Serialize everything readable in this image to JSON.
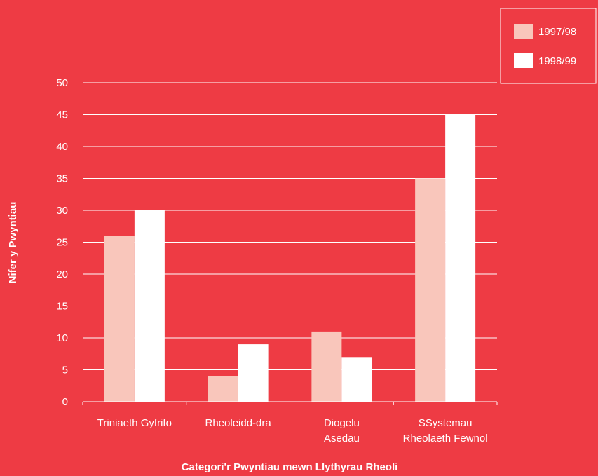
{
  "page": {
    "background": "#ee3b44"
  },
  "chart_data": {
    "type": "bar",
    "title": "",
    "xlabel": "Categori'r Pwyntiau mewn Llythyrau Rheoli",
    "ylabel": "Nifer y Pwyntiau",
    "ylim": [
      0,
      50
    ],
    "yticks": [
      0,
      5,
      10,
      15,
      20,
      25,
      30,
      35,
      40,
      45,
      50
    ],
    "grid": true,
    "legend_position": "top-right",
    "categories": [
      [
        "Triniaeth Gyfrifo"
      ],
      [
        "Rheoleidd-dra"
      ],
      [
        "Diogelu",
        "Asedau"
      ],
      [
        "SSystemau",
        "Rheolaeth Fewnol"
      ]
    ],
    "series": [
      {
        "name": "1997/98",
        "color": "#f9c6bb",
        "values": [
          26,
          4,
          11,
          35
        ]
      },
      {
        "name": "1998/99",
        "color": "#ffffff",
        "values": [
          30,
          9,
          7,
          45
        ]
      }
    ]
  }
}
